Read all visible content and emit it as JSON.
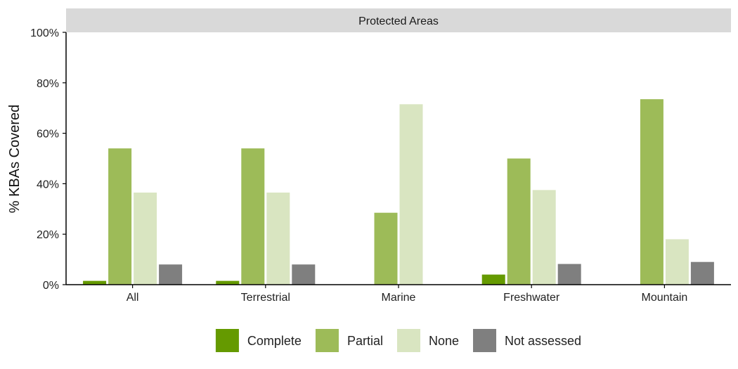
{
  "chart_data": {
    "type": "bar",
    "facet_title": "Protected Areas",
    "ylabel": "% KBAs Covered",
    "xlabel": "",
    "ylim": [
      0,
      100
    ],
    "y_ticks": [
      "0%",
      "20%",
      "40%",
      "60%",
      "80%",
      "100%"
    ],
    "categories": [
      "All",
      "Terrestrial",
      "Marine",
      "Freshwater",
      "Mountain"
    ],
    "series": [
      {
        "name": "Complete",
        "color": "#659a00",
        "values": [
          1.5,
          1.5,
          0,
          4,
          0
        ]
      },
      {
        "name": "Partial",
        "color": "#9dbb58",
        "values": [
          54,
          54,
          28.5,
          50,
          73.5
        ]
      },
      {
        "name": "None",
        "color": "#d9e5c1",
        "values": [
          36.5,
          36.5,
          71.5,
          37.5,
          18
        ]
      },
      {
        "name": "Not assessed",
        "color": "#7f7f7f",
        "values": [
          8,
          8,
          0,
          8.2,
          9
        ]
      }
    ],
    "grid": false,
    "legend_position": "bottom"
  }
}
